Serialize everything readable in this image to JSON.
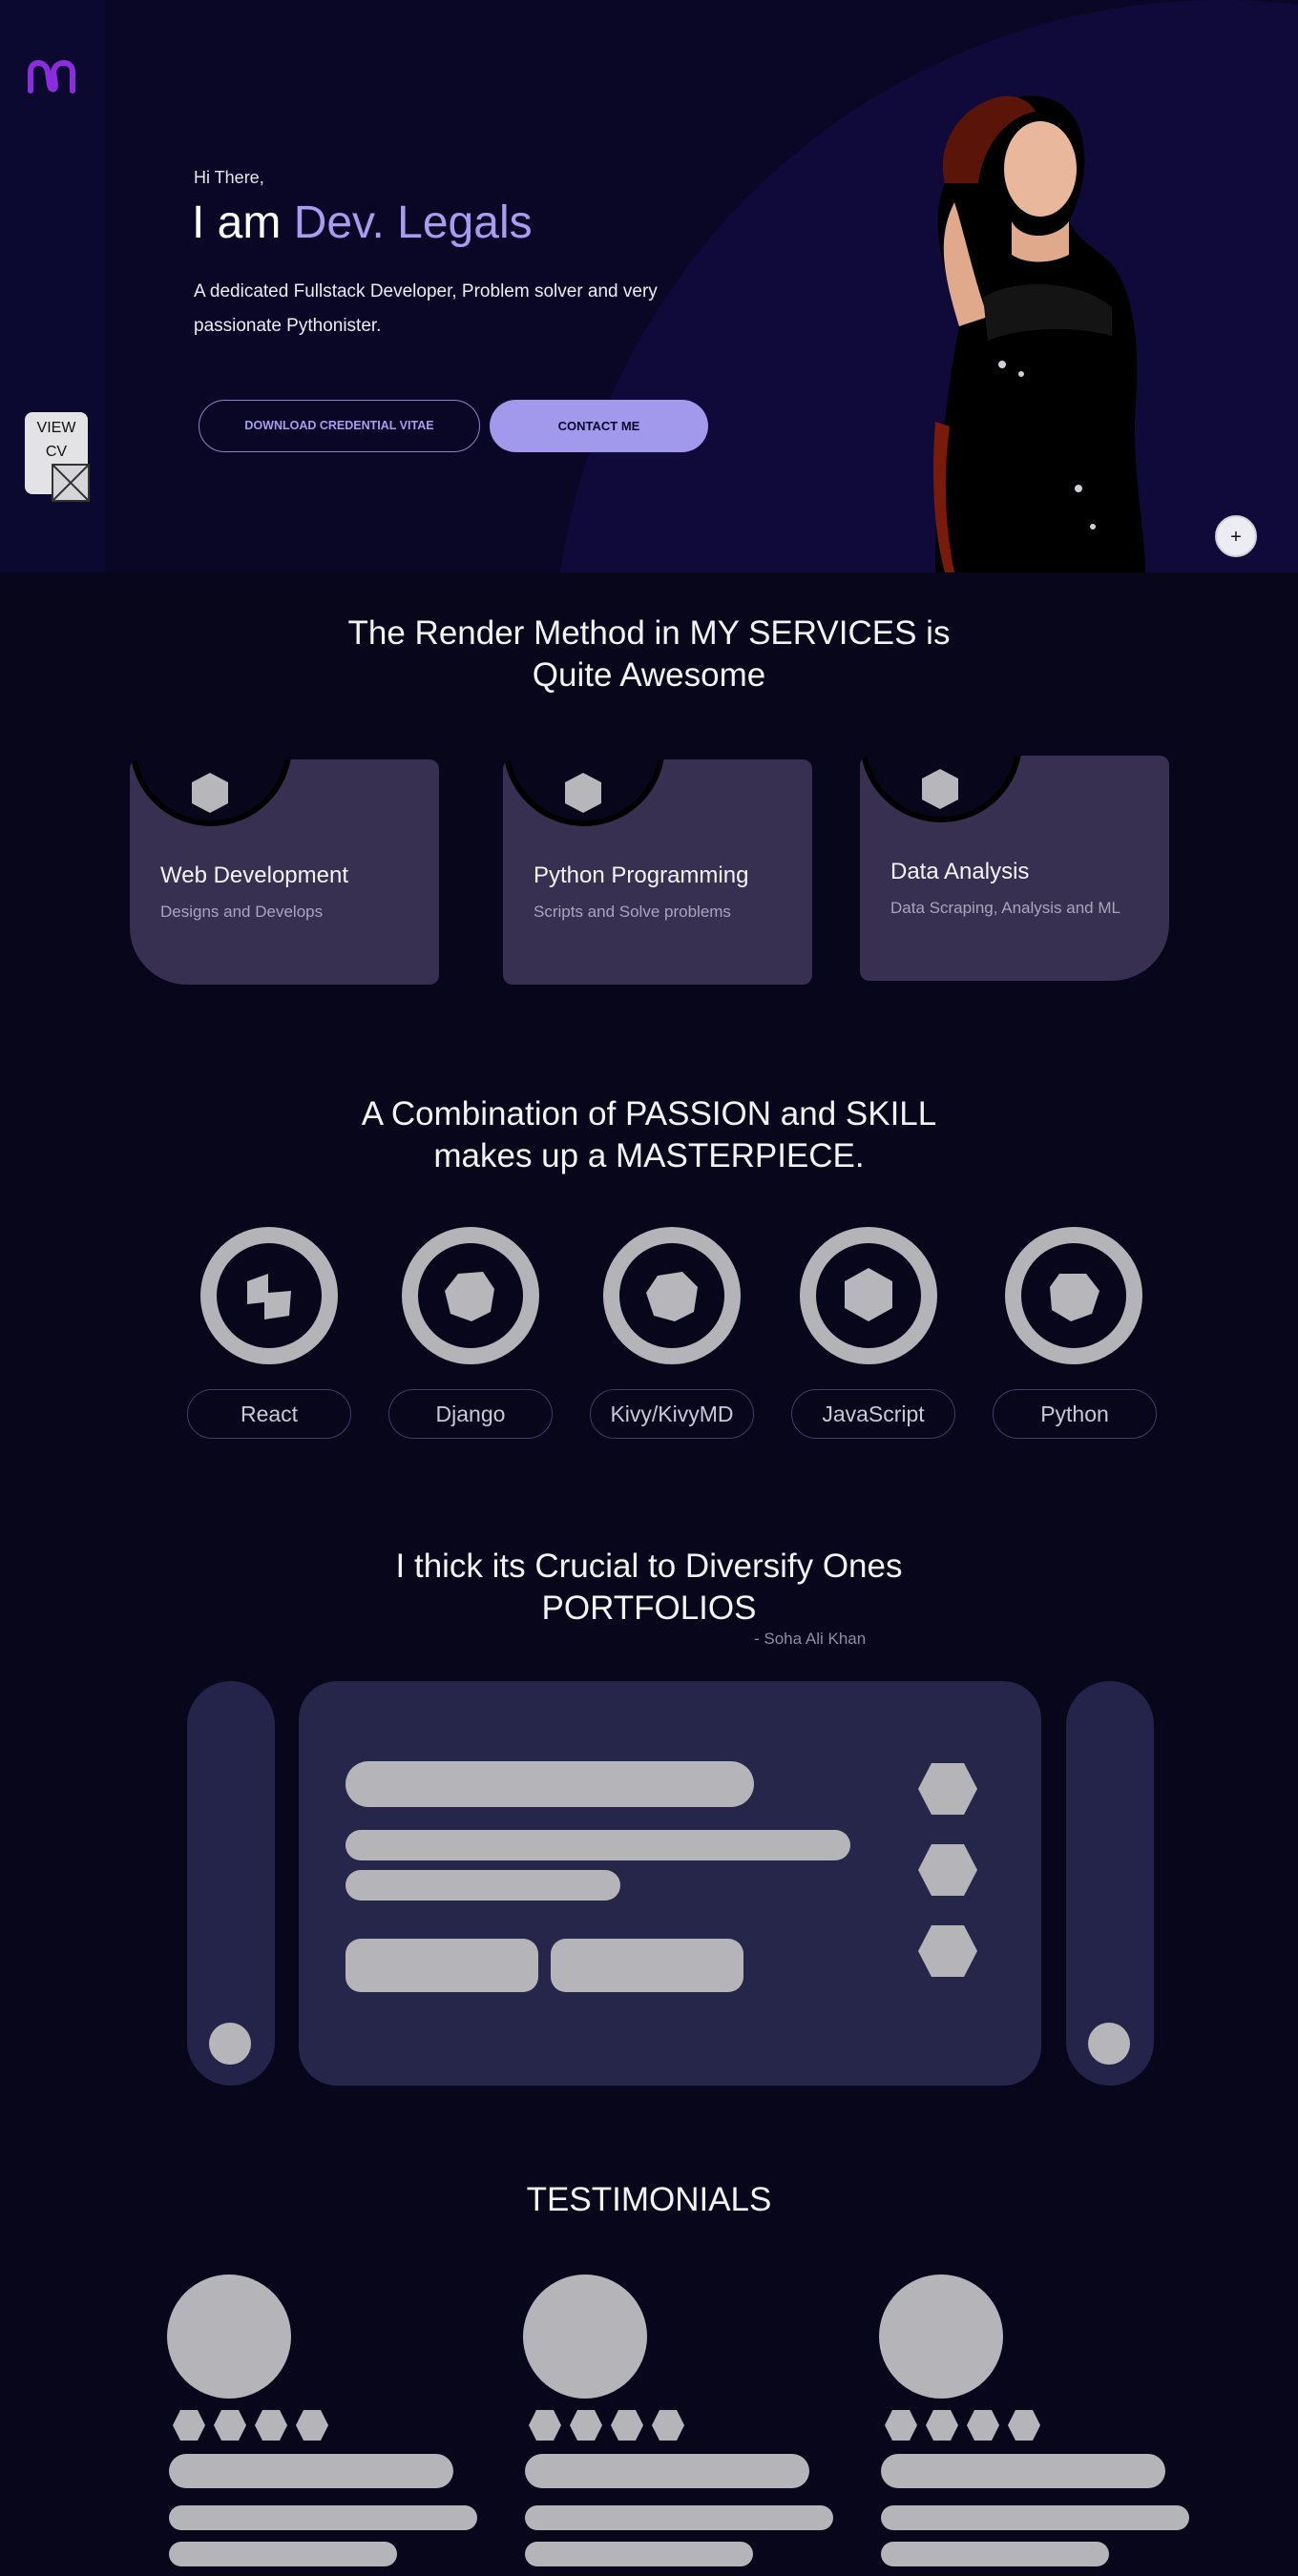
{
  "hero": {
    "greeting": "Hi There,",
    "headline_prefix": "I am ",
    "headline_name": "Dev. Legals",
    "intro": "A dedicated Fullstack Developer, Problem solver and very passionate Pythonister.",
    "download_button": "DOWNLOAD CREDENTIAL VITAE",
    "contact_button": "CONTACT ME",
    "view_cv_line1": "VIEW",
    "view_cv_line2": "CV",
    "fab_label": "+"
  },
  "services": {
    "title_line1": "The Render Method in MY SERVICES is",
    "title_line2": "Quite Awesome",
    "items": [
      {
        "title": "Web Development",
        "subtitle": "Designs and Develops"
      },
      {
        "title": "Python Programming",
        "subtitle": "Scripts and Solve problems"
      },
      {
        "title": "Data Analysis",
        "subtitle": "Data Scraping, Analysis  and ML"
      }
    ]
  },
  "skills": {
    "title_line1": "A Combination of PASSION and SKILL",
    "title_line2": "makes up a MASTERPIECE.",
    "items": [
      "React",
      "Django",
      "Kivy/KivyMD",
      "JavaScript",
      "Python"
    ]
  },
  "portfolio": {
    "title_line1": "I thick its Crucial to Diversify Ones",
    "title_line2": "PORTFOLIOS",
    "author": "- Soha Ali Khan"
  },
  "testimonials": {
    "title": "TESTIMONIALS"
  },
  "colors": {
    "background": "#07061a",
    "hero_background": "#0a0726",
    "accent": "#a99cf0",
    "card": "#383050",
    "portfolio_card": "#25264a",
    "placeholder": "#b5b5b9"
  }
}
